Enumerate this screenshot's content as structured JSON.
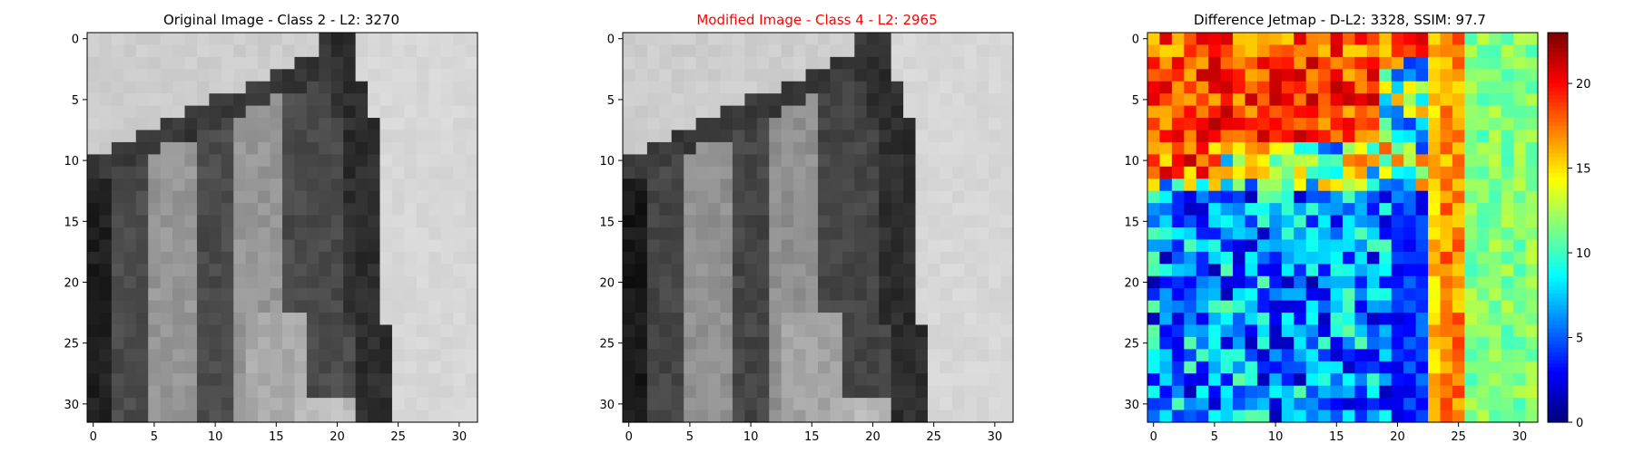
{
  "figure": {
    "panels": [
      {
        "title": "Original Image - Class 2 - L2: 3270",
        "title_color": "#000000"
      },
      {
        "title": "Modified Image - Class 4 - L2: 2965",
        "title_color": "#ff0000"
      },
      {
        "title": "Difference Jetmap - D-L2: 3328, SSIM: 97.7",
        "title_color": "#000000"
      }
    ]
  },
  "chart_data": [
    {
      "type": "heatmap",
      "title": "Original Image - Class 2 - L2: 3270",
      "colormap": "gray",
      "grid_size": [
        32,
        32
      ],
      "x_ticks": [
        0,
        5,
        10,
        15,
        20,
        25,
        30
      ],
      "y_ticks": [
        0,
        5,
        10,
        15,
        20,
        25,
        30
      ],
      "xlim": [
        -0.5,
        31.5
      ],
      "ylim": [
        31.5,
        -0.5
      ],
      "grid": false
    },
    {
      "type": "heatmap",
      "title": "Modified Image - Class 4 - L2: 2965",
      "title_color": "#ff0000",
      "colormap": "gray",
      "grid_size": [
        32,
        32
      ],
      "x_ticks": [
        0,
        5,
        10,
        15,
        20,
        25,
        30
      ],
      "y_ticks": [
        0,
        5,
        10,
        15,
        20,
        25,
        30
      ],
      "xlim": [
        -0.5,
        31.5
      ],
      "ylim": [
        31.5,
        -0.5
      ],
      "grid": false
    },
    {
      "type": "heatmap",
      "title": "Difference Jetmap - D-L2: 3328, SSIM: 97.7",
      "colormap": "jet",
      "grid_size": [
        32,
        32
      ],
      "x_ticks": [
        0,
        5,
        10,
        15,
        20,
        25,
        30
      ],
      "y_ticks": [
        0,
        5,
        10,
        15,
        20,
        25,
        30
      ],
      "xlim": [
        -0.5,
        31.5
      ],
      "ylim": [
        31.5,
        -0.5
      ],
      "colorbar": {
        "range": [
          0,
          23
        ],
        "ticks": [
          0,
          5,
          10,
          15,
          20
        ]
      },
      "grid": false
    }
  ]
}
